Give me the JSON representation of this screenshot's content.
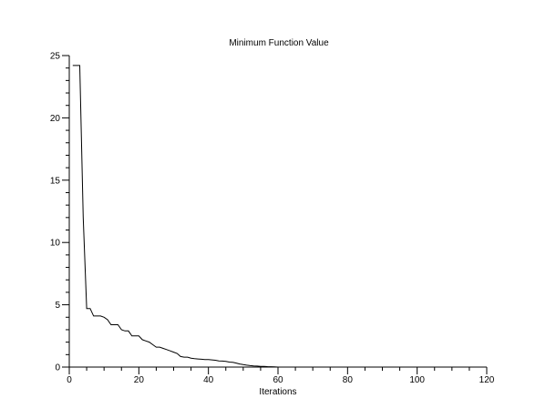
{
  "chart_data": {
    "type": "line",
    "title": "Minimum Function Value",
    "xlabel": "Iterations",
    "ylabel": "",
    "xlim": [
      0,
      120
    ],
    "ylim": [
      0,
      25
    ],
    "x_ticks": [
      0,
      20,
      40,
      60,
      80,
      100,
      120
    ],
    "y_ticks": [
      0,
      5,
      10,
      15,
      20,
      25
    ],
    "x_tick_labels": [
      "0",
      "20",
      "40",
      "60",
      "80",
      "100",
      "120"
    ],
    "y_tick_labels": [
      "0",
      "5",
      "10",
      "15",
      "20",
      "25"
    ],
    "grid": false,
    "legend": "none",
    "line_color": "#000000",
    "series": [
      {
        "x": [
          1,
          2,
          3,
          4,
          5,
          6,
          7,
          8,
          9,
          10,
          11,
          12,
          13,
          14,
          15,
          16,
          17,
          18,
          19,
          20,
          21,
          22,
          23,
          24,
          25,
          26,
          27,
          28,
          29,
          30,
          31,
          32,
          33,
          34,
          35,
          36,
          37,
          38,
          39,
          40,
          41,
          42,
          43,
          44,
          45,
          46,
          47,
          48,
          49,
          50,
          51,
          52,
          53,
          54,
          55,
          56,
          57,
          58,
          59,
          60
        ],
        "y": [
          24.2,
          24.2,
          24.2,
          12.0,
          4.7,
          4.7,
          4.1,
          4.1,
          4.1,
          4.0,
          3.8,
          3.4,
          3.4,
          3.4,
          3.0,
          2.9,
          2.9,
          2.5,
          2.5,
          2.5,
          2.2,
          2.1,
          2.0,
          1.8,
          1.6,
          1.6,
          1.5,
          1.4,
          1.3,
          1.2,
          1.1,
          0.85,
          0.8,
          0.8,
          0.72,
          0.67,
          0.65,
          0.63,
          0.61,
          0.6,
          0.58,
          0.55,
          0.5,
          0.48,
          0.45,
          0.4,
          0.38,
          0.32,
          0.25,
          0.2,
          0.15,
          0.12,
          0.09,
          0.08,
          0.06,
          0.05,
          0.04,
          0.03,
          0.02,
          0.0
        ]
      }
    ]
  }
}
